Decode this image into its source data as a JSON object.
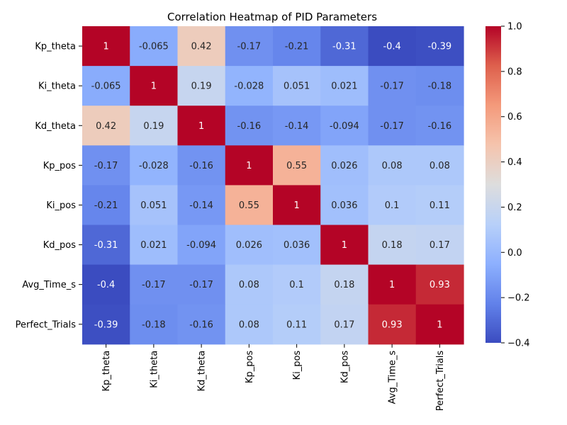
{
  "chart_data": {
    "type": "heatmap",
    "title": "Correlation Heatmap of PID Parameters",
    "xlabel": "",
    "ylabel": "",
    "labels": [
      "Kp_theta",
      "Ki_theta",
      "Kd_theta",
      "Kp_pos",
      "Ki_pos",
      "Kd_pos",
      "Avg_Time_s",
      "Perfect_Trials"
    ],
    "matrix": [
      [
        1,
        -0.065,
        0.42,
        -0.17,
        -0.21,
        -0.31,
        -0.4,
        -0.39
      ],
      [
        -0.065,
        1,
        0.19,
        -0.028,
        0.051,
        0.021,
        -0.17,
        -0.18
      ],
      [
        0.42,
        0.19,
        1,
        -0.16,
        -0.14,
        -0.094,
        -0.17,
        -0.16
      ],
      [
        -0.17,
        -0.028,
        -0.16,
        1,
        0.55,
        0.026,
        0.08,
        0.08
      ],
      [
        -0.21,
        0.051,
        -0.14,
        0.55,
        1,
        0.036,
        0.1,
        0.11
      ],
      [
        -0.31,
        0.021,
        -0.094,
        0.026,
        0.036,
        1,
        0.18,
        0.17
      ],
      [
        -0.4,
        -0.17,
        -0.17,
        0.08,
        0.1,
        0.18,
        1,
        0.93
      ],
      [
        -0.39,
        -0.18,
        -0.16,
        0.08,
        0.11,
        0.17,
        0.93,
        1
      ]
    ],
    "value_labels": [
      [
        "1",
        "-0.065",
        "0.42",
        "-0.17",
        "-0.21",
        "-0.31",
        "-0.4",
        "-0.39"
      ],
      [
        "-0.065",
        "1",
        "0.19",
        "-0.028",
        "0.051",
        "0.021",
        "-0.17",
        "-0.18"
      ],
      [
        "0.42",
        "0.19",
        "1",
        "-0.16",
        "-0.14",
        "-0.094",
        "-0.17",
        "-0.16"
      ],
      [
        "-0.17",
        "-0.028",
        "-0.16",
        "1",
        "0.55",
        "0.026",
        "0.08",
        "0.08"
      ],
      [
        "-0.21",
        "0.051",
        "-0.14",
        "0.55",
        "1",
        "0.036",
        "0.1",
        "0.11"
      ],
      [
        "-0.31",
        "0.021",
        "-0.094",
        "0.026",
        "0.036",
        "1",
        "0.18",
        "0.17"
      ],
      [
        "-0.4",
        "-0.17",
        "-0.17",
        "0.08",
        "0.1",
        "0.18",
        "1",
        "0.93"
      ],
      [
        "-0.39",
        "-0.18",
        "-0.16",
        "0.08",
        "0.11",
        "0.17",
        "0.93",
        "1"
      ]
    ],
    "colormap": "coolwarm",
    "colorbar": {
      "range": [
        -0.4,
        1.0
      ],
      "ticks": [
        -0.4,
        -0.2,
        0.0,
        0.2,
        0.4,
        0.6,
        0.8,
        1.0
      ],
      "tick_labels": [
        "−0.4",
        "−0.2",
        "0.0",
        "0.2",
        "0.4",
        "0.6",
        "0.8",
        "1.0"
      ]
    },
    "grid": false
  }
}
